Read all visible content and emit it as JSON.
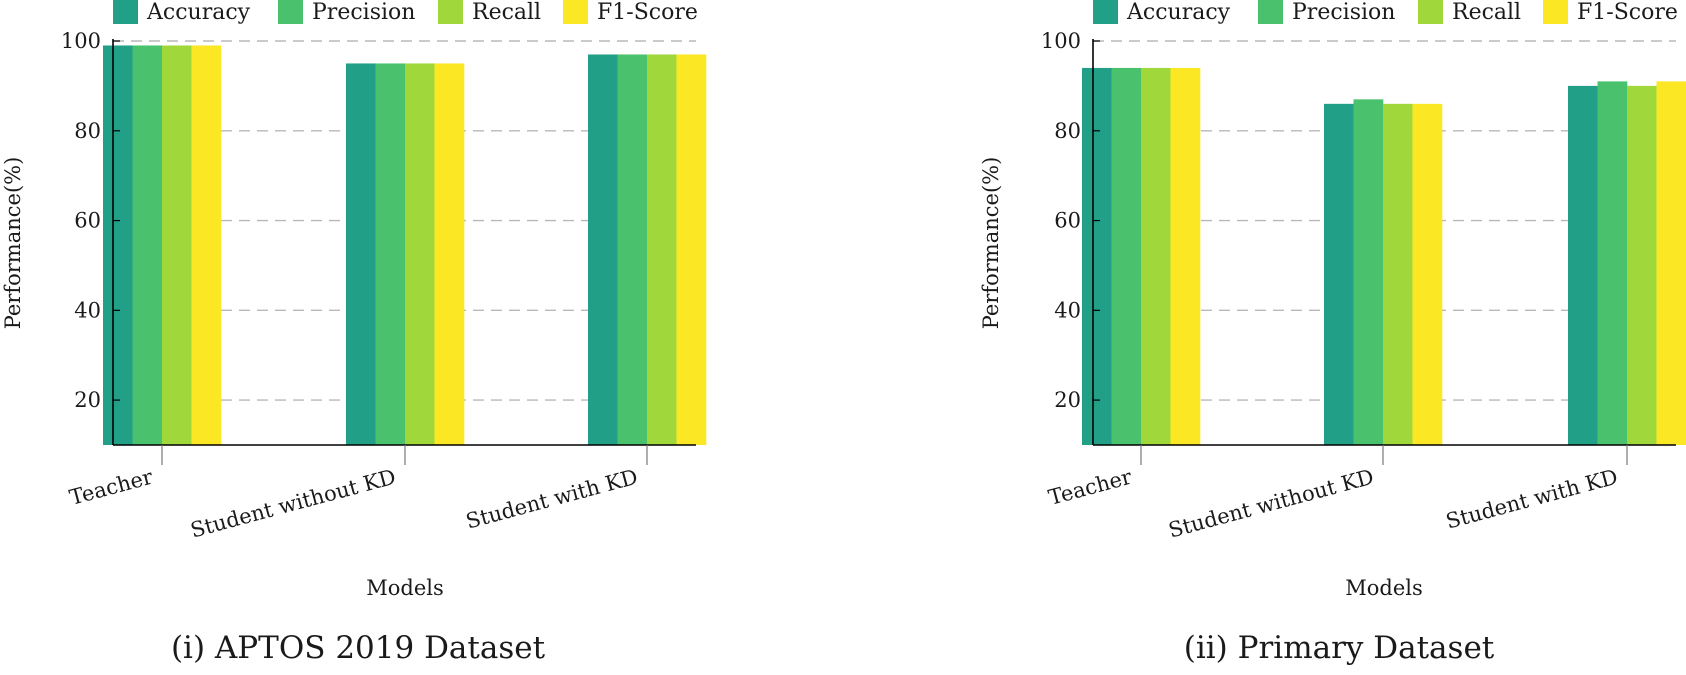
{
  "chart_data": [
    {
      "type": "bar",
      "title": "(i) APTOS 2019 Dataset",
      "xlabel": "Models",
      "ylabel": "Performance(%)",
      "ylim": [
        10,
        100
      ],
      "yticks": [
        20,
        40,
        60,
        80,
        100
      ],
      "grid": true,
      "legend_position": "top",
      "categories": [
        "Teacher",
        "Student without KD",
        "Student with KD"
      ],
      "series": [
        {
          "name": "Accuracy",
          "values": [
            99,
            95,
            97
          ]
        },
        {
          "name": "Precision",
          "values": [
            99,
            95,
            97
          ]
        },
        {
          "name": "Recall",
          "values": [
            99,
            95,
            97
          ]
        },
        {
          "name": "F1-Score",
          "values": [
            99,
            95,
            97
          ]
        }
      ]
    },
    {
      "type": "bar",
      "title": "(ii) Primary Dataset",
      "xlabel": "Models",
      "ylabel": "Performance(%)",
      "ylim": [
        10,
        100
      ],
      "yticks": [
        20,
        40,
        60,
        80,
        100
      ],
      "grid": true,
      "legend_position": "top",
      "categories": [
        "Teacher",
        "Student without KD",
        "Student with KD"
      ],
      "series": [
        {
          "name": "Accuracy",
          "values": [
            94,
            86,
            90
          ]
        },
        {
          "name": "Precision",
          "values": [
            94,
            87,
            91
          ]
        },
        {
          "name": "Recall",
          "values": [
            94,
            86,
            90
          ]
        },
        {
          "name": "F1-Score",
          "values": [
            94,
            86,
            91
          ]
        }
      ]
    }
  ],
  "colors": {
    "series": [
      "#21a087",
      "#4ac26d",
      "#a0d83b",
      "#fce724"
    ],
    "grid": "#b8b8b8",
    "axis": "#000000"
  }
}
